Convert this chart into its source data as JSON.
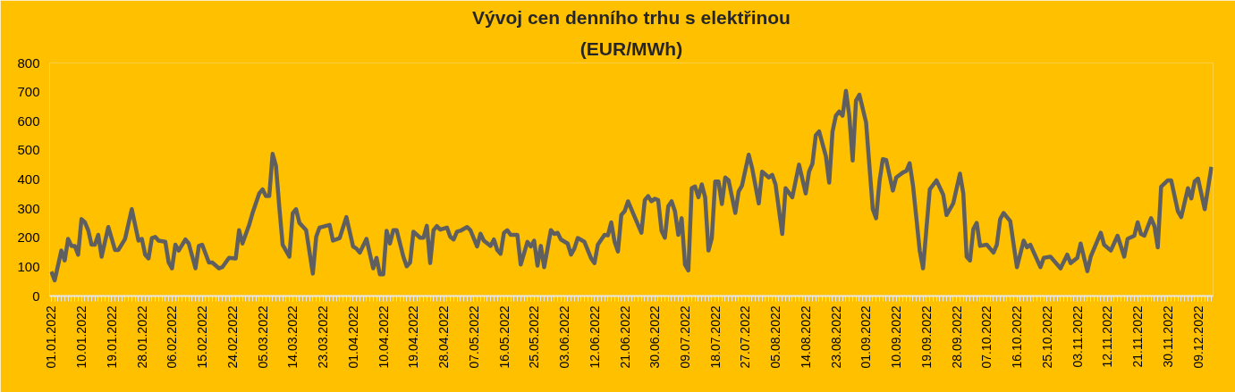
{
  "chart_data": {
    "type": "line",
    "title": "Vývoj cen denního trhu s elektřinou",
    "subtitle": "(EUR/MWh)",
    "x": [
      "2022-01-01",
      "2022-01-02",
      "2022-01-04",
      "2022-01-05",
      "2022-01-06",
      "2022-01-07",
      "2022-01-08",
      "2022-01-09",
      "2022-01-10",
      "2022-01-11",
      "2022-01-12",
      "2022-01-13",
      "2022-01-14",
      "2022-01-15",
      "2022-01-16",
      "2022-01-18",
      "2022-01-20",
      "2022-01-21",
      "2022-01-23",
      "2022-01-25",
      "2022-01-27",
      "2022-01-28",
      "2022-01-29",
      "2022-01-30",
      "2022-01-31",
      "2022-02-01",
      "2022-02-02",
      "2022-02-04",
      "2022-02-05",
      "2022-02-06",
      "2022-02-07",
      "2022-02-08",
      "2022-02-10",
      "2022-02-11",
      "2022-02-13",
      "2022-02-14",
      "2022-02-15",
      "2022-02-17",
      "2022-02-18",
      "2022-02-20",
      "2022-02-21",
      "2022-02-23",
      "2022-02-25",
      "2022-02-26",
      "2022-02-27",
      "2022-03-01",
      "2022-03-02",
      "2022-03-04",
      "2022-03-05",
      "2022-03-06",
      "2022-03-07",
      "2022-03-08",
      "2022-03-09",
      "2022-03-10",
      "2022-03-11",
      "2022-03-13",
      "2022-03-14",
      "2022-03-15",
      "2022-03-16",
      "2022-03-18",
      "2022-03-20",
      "2022-03-21",
      "2022-03-22",
      "2022-03-25",
      "2022-03-26",
      "2022-03-28",
      "2022-03-30",
      "2022-04-01",
      "2022-04-02",
      "2022-04-03",
      "2022-04-05",
      "2022-04-07",
      "2022-04-08",
      "2022-04-09",
      "2022-04-10",
      "2022-04-11",
      "2022-04-12",
      "2022-04-13",
      "2022-04-14",
      "2022-04-16",
      "2022-04-17",
      "2022-04-18",
      "2022-04-19",
      "2022-04-21",
      "2022-04-22",
      "2022-04-23",
      "2022-04-24",
      "2022-04-25",
      "2022-04-26",
      "2022-04-27",
      "2022-04-29",
      "2022-04-30",
      "2022-05-01",
      "2022-05-02",
      "2022-05-03",
      "2022-05-05",
      "2022-05-06",
      "2022-05-08",
      "2022-05-09",
      "2022-05-10",
      "2022-05-12",
      "2022-05-13",
      "2022-05-14",
      "2022-05-15",
      "2022-05-16",
      "2022-05-17",
      "2022-05-18",
      "2022-05-20",
      "2022-05-21",
      "2022-05-23",
      "2022-05-24",
      "2022-05-25",
      "2022-05-26",
      "2022-05-27",
      "2022-05-28",
      "2022-05-30",
      "2022-05-31",
      "2022-06-01",
      "2022-06-02",
      "2022-06-04",
      "2022-06-05",
      "2022-06-06",
      "2022-06-07",
      "2022-06-09",
      "2022-06-11",
      "2022-06-12",
      "2022-06-13",
      "2022-06-15",
      "2022-06-16",
      "2022-06-17",
      "2022-06-18",
      "2022-06-19",
      "2022-06-20",
      "2022-06-21",
      "2022-06-22",
      "2022-06-26",
      "2022-06-27",
      "2022-06-28",
      "2022-06-29",
      "2022-06-30",
      "2022-07-01",
      "2022-07-02",
      "2022-07-03",
      "2022-07-04",
      "2022-07-05",
      "2022-07-06",
      "2022-07-07",
      "2022-07-08",
      "2022-07-09",
      "2022-07-10",
      "2022-07-11",
      "2022-07-12",
      "2022-07-13",
      "2022-07-14",
      "2022-07-15",
      "2022-07-16",
      "2022-07-17",
      "2022-07-18",
      "2022-07-19",
      "2022-07-20",
      "2022-07-21",
      "2022-07-22",
      "2022-07-24",
      "2022-07-25",
      "2022-07-26",
      "2022-07-28",
      "2022-07-29",
      "2022-07-31",
      "2022-08-01",
      "2022-08-03",
      "2022-08-04",
      "2022-08-05",
      "2022-08-07",
      "2022-08-08",
      "2022-08-10",
      "2022-08-12",
      "2022-08-14",
      "2022-08-15",
      "2022-08-16",
      "2022-08-17",
      "2022-08-18",
      "2022-08-20",
      "2022-08-21",
      "2022-08-22",
      "2022-08-23",
      "2022-08-24",
      "2022-08-25",
      "2022-08-26",
      "2022-08-27",
      "2022-08-28",
      "2022-08-29",
      "2022-08-30",
      "2022-09-01",
      "2022-09-03",
      "2022-09-04",
      "2022-09-05",
      "2022-09-06",
      "2022-09-07",
      "2022-09-09",
      "2022-09-10",
      "2022-09-12",
      "2022-09-13",
      "2022-09-14",
      "2022-09-15",
      "2022-09-17",
      "2022-09-18",
      "2022-09-20",
      "2022-09-22",
      "2022-09-24",
      "2022-09-25",
      "2022-09-27",
      "2022-09-29",
      "2022-09-30",
      "2022-10-01",
      "2022-10-02",
      "2022-10-03",
      "2022-10-04",
      "2022-10-05",
      "2022-10-07",
      "2022-10-09",
      "2022-10-10",
      "2022-10-11",
      "2022-10-12",
      "2022-10-14",
      "2022-10-16",
      "2022-10-18",
      "2022-10-19",
      "2022-10-20",
      "2022-10-23",
      "2022-10-24",
      "2022-10-26",
      "2022-10-29",
      "2022-10-31",
      "2022-11-01",
      "2022-11-03",
      "2022-11-04",
      "2022-11-06",
      "2022-11-07",
      "2022-11-10",
      "2022-11-11",
      "2022-11-13",
      "2022-11-15",
      "2022-11-17",
      "2022-11-18",
      "2022-11-20",
      "2022-11-21",
      "2022-11-22",
      "2022-11-23",
      "2022-11-25",
      "2022-11-26",
      "2022-11-27",
      "2022-11-28",
      "2022-11-30",
      "2022-12-01",
      "2022-12-03",
      "2022-12-04",
      "2022-12-06",
      "2022-12-07",
      "2022-12-08",
      "2022-12-09",
      "2022-12-11",
      "2022-12-13"
    ],
    "series": [
      {
        "color": "#5f5f5f",
        "values": [
          84,
          54,
          156,
          122,
          196,
          172,
          172,
          142,
          264,
          253,
          226,
          176,
          176,
          210,
          135,
          237,
          158,
          158,
          196,
          298,
          190,
          196,
          142,
          129,
          199,
          203,
          190,
          186,
          115,
          95,
          176,
          156,
          194,
          180,
          95,
          172,
          176,
          115,
          115,
          95,
          99,
          131,
          129,
          226,
          180,
          244,
          284,
          352,
          366,
          343,
          343,
          488,
          447,
          305,
          176,
          135,
          284,
          298,
          251,
          226,
          77,
          203,
          235,
          244,
          190,
          199,
          271,
          170,
          163,
          149,
          196,
          95,
          131,
          74,
          74,
          224,
          180,
          226,
          226,
          135,
          102,
          115,
          221,
          200,
          200,
          241,
          113,
          226,
          240,
          228,
          235,
          203,
          194,
          221,
          224,
          237,
          226,
          170,
          214,
          190,
          172,
          194,
          158,
          145,
          217,
          226,
          210,
          210,
          108,
          186,
          170,
          190,
          104,
          172,
          99,
          226,
          213,
          217,
          194,
          180,
          142,
          163,
          199,
          186,
          129,
          113,
          176,
          210,
          208,
          253,
          186,
          153,
          278,
          291,
          325,
          217,
          329,
          343,
          325,
          334,
          329,
          224,
          200,
          308,
          325,
          291,
          210,
          267,
          108,
          88,
          370,
          376,
          339,
          383,
          339,
          156,
          199,
          393,
          393,
          316,
          407,
          397,
          285,
          359,
          379,
          485,
          440,
          318,
          427,
          407,
          416,
          383,
          213,
          370,
          339,
          451,
          352,
          427,
          454,
          552,
          565,
          481,
          389,
          565,
          619,
          633,
          619,
          704,
          619,
          465,
          671,
          691,
          596,
          298,
          267,
          393,
          470,
          467,
          362,
          407,
          424,
          429,
          456,
          379,
          156,
          95,
          366,
          397,
          348,
          278,
          318,
          420,
          352,
          135,
          122,
          230,
          251,
          172,
          176,
          149,
          176,
          264,
          285,
          257,
          99,
          190,
          167,
          176,
          99,
          131,
          135,
          95,
          142,
          113,
          131,
          180,
          85,
          135,
          217,
          176,
          156,
          207,
          135,
          196,
          207,
          253,
          213,
          207,
          267,
          240,
          167,
          375,
          397,
          397,
          291,
          271,
          370,
          335,
          393,
          403,
          298,
          443
        ]
      }
    ],
    "xlim": [
      "2021-12-31T12:00",
      "2022-12-13T12:00"
    ],
    "xticks": [
      {
        "value": "2022-01-01",
        "label": "01.01.2022"
      },
      {
        "value": "2022-01-10",
        "label": "10.01.2022"
      },
      {
        "value": "2022-01-19",
        "label": "19.01.2022"
      },
      {
        "value": "2022-01-28",
        "label": "28.01.2022"
      },
      {
        "value": "2022-02-06",
        "label": "06.02.2022"
      },
      {
        "value": "2022-02-15",
        "label": "15.02.2022"
      },
      {
        "value": "2022-02-24",
        "label": "24.02.2022"
      },
      {
        "value": "2022-03-05",
        "label": "05.03.2022"
      },
      {
        "value": "2022-03-14",
        "label": "14.03.2022"
      },
      {
        "value": "2022-03-23",
        "label": "23.03.2022"
      },
      {
        "value": "2022-04-01",
        "label": "01.04.2022"
      },
      {
        "value": "2022-04-10",
        "label": "10.04.2022"
      },
      {
        "value": "2022-04-19",
        "label": "19.04.2022"
      },
      {
        "value": "2022-04-28",
        "label": "28.04.2022"
      },
      {
        "value": "2022-05-07",
        "label": "07.05.2022"
      },
      {
        "value": "2022-05-16",
        "label": "16.05.2022"
      },
      {
        "value": "2022-05-25",
        "label": "25.05.2022"
      },
      {
        "value": "2022-06-03",
        "label": "03.06.2022"
      },
      {
        "value": "2022-06-12",
        "label": "12.06.2022"
      },
      {
        "value": "2022-06-21",
        "label": "21.06.2022"
      },
      {
        "value": "2022-06-30",
        "label": "30.06.2022"
      },
      {
        "value": "2022-07-09",
        "label": "09.07.2022"
      },
      {
        "value": "2022-07-18",
        "label": "18.07.2022"
      },
      {
        "value": "2022-07-27",
        "label": "27.07.2022"
      },
      {
        "value": "2022-08-05",
        "label": "05.08.2022"
      },
      {
        "value": "2022-08-14",
        "label": "14.08.2022"
      },
      {
        "value": "2022-08-23",
        "label": "23.08.2022"
      },
      {
        "value": "2022-09-01",
        "label": "01.09.2022"
      },
      {
        "value": "2022-09-10",
        "label": "10.09.2022"
      },
      {
        "value": "2022-09-19",
        "label": "19.09.2022"
      },
      {
        "value": "2022-09-28",
        "label": "28.09.2022"
      },
      {
        "value": "2022-10-07",
        "label": "07.10.2022"
      },
      {
        "value": "2022-10-16",
        "label": "16.10.2022"
      },
      {
        "value": "2022-10-25",
        "label": "25.10.2022"
      },
      {
        "value": "2022-11-03",
        "label": "03.11.2022"
      },
      {
        "value": "2022-11-12",
        "label": "12.11.2022"
      },
      {
        "value": "2022-11-21",
        "label": "21.11.2022"
      },
      {
        "value": "2022-11-30",
        "label": "30.11.2022"
      },
      {
        "value": "2022-12-09",
        "label": "09.12.2022"
      }
    ],
    "ylim": [
      0,
      800
    ],
    "yticks": [
      0,
      100,
      200,
      300,
      400,
      500,
      600,
      700,
      800
    ]
  }
}
